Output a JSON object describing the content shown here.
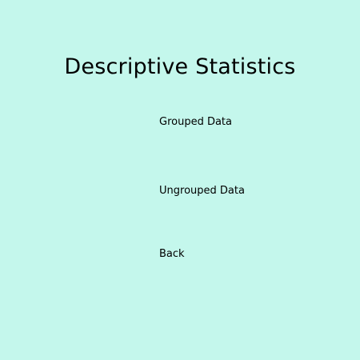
{
  "screen": {
    "title": "Descriptive Statistics",
    "background_color": "#c4f7ec",
    "menu": {
      "grouped_data_label": "Grouped Data",
      "ungrouped_data_label": "Ungrouped Data",
      "back_label": "Back"
    }
  }
}
